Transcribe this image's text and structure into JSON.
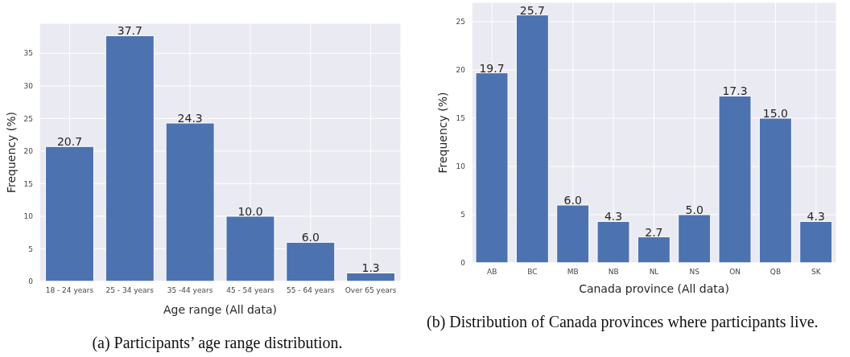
{
  "chart_data": [
    {
      "type": "bar",
      "xlabel": "Age range (All data)",
      "ylabel": "Frequency (%)",
      "categories": [
        "18 - 24 years",
        "25 - 34 years",
        "35 -44 years",
        "45 - 54 years",
        "55 - 64 years",
        "Over 65 years"
      ],
      "values": [
        20.7,
        37.7,
        24.3,
        10.0,
        6.0,
        1.3
      ],
      "color": "#4c72b0",
      "ylim": [
        0,
        39.6
      ],
      "yticks": [
        0,
        5,
        10,
        15,
        20,
        25,
        30,
        35
      ],
      "grid": true,
      "value_labels": [
        "20.7",
        "37.7",
        "24.3",
        "10.0",
        "6.0",
        "1.3"
      ],
      "annotations": [
        "(a) Participants’ age range distribution."
      ]
    },
    {
      "type": "bar",
      "xlabel": "Canada province (All data)",
      "ylabel": "Frequency (%)",
      "categories": [
        "AB",
        "BC",
        "MB",
        "NB",
        "NL",
        "NS",
        "ON",
        "QB",
        "SK"
      ],
      "values": [
        19.7,
        25.7,
        6.0,
        4.3,
        2.7,
        5.0,
        17.3,
        15.0,
        4.3
      ],
      "color": "#4c72b0",
      "ylim": [
        0,
        27.0
      ],
      "yticks": [
        0,
        5,
        10,
        15,
        20,
        25
      ],
      "grid": true,
      "value_labels": [
        "19.7",
        "25.7",
        "6.0",
        "4.3",
        "2.7",
        "5.0",
        "17.3",
        "15.0",
        "4.3"
      ],
      "annotations": [
        "(b) Distribution of Canada provinces where participants live."
      ]
    }
  ]
}
